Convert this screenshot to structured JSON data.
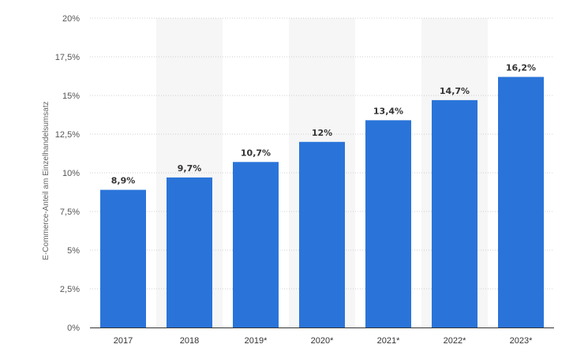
{
  "chart_data": {
    "type": "bar",
    "categories": [
      "2017",
      "2018",
      "2019*",
      "2020*",
      "2021*",
      "2022*",
      "2023*"
    ],
    "values": [
      8.9,
      9.7,
      10.7,
      12,
      13.4,
      14.7,
      16.2
    ],
    "value_labels": [
      "8,9%",
      "9,7%",
      "10,7%",
      "12%",
      "13,4%",
      "14,7%",
      "16,2%"
    ],
    "title": "",
    "xlabel": "",
    "ylabel": "E-Commerce-Anteil am Einzelhandelsumsatz",
    "ylim": [
      0,
      20
    ],
    "yticks": [
      0,
      2.5,
      5,
      7.5,
      10,
      12.5,
      15,
      17.5,
      20
    ],
    "ytick_labels": [
      "0%",
      "2,5%",
      "5%",
      "7,5%",
      "10%",
      "12,5%",
      "15%",
      "17,5%",
      "20%"
    ],
    "grid": "dotted horizontal",
    "legend": "none",
    "bar_color": "#2a74d9",
    "band_color": "#f6f6f6"
  }
}
